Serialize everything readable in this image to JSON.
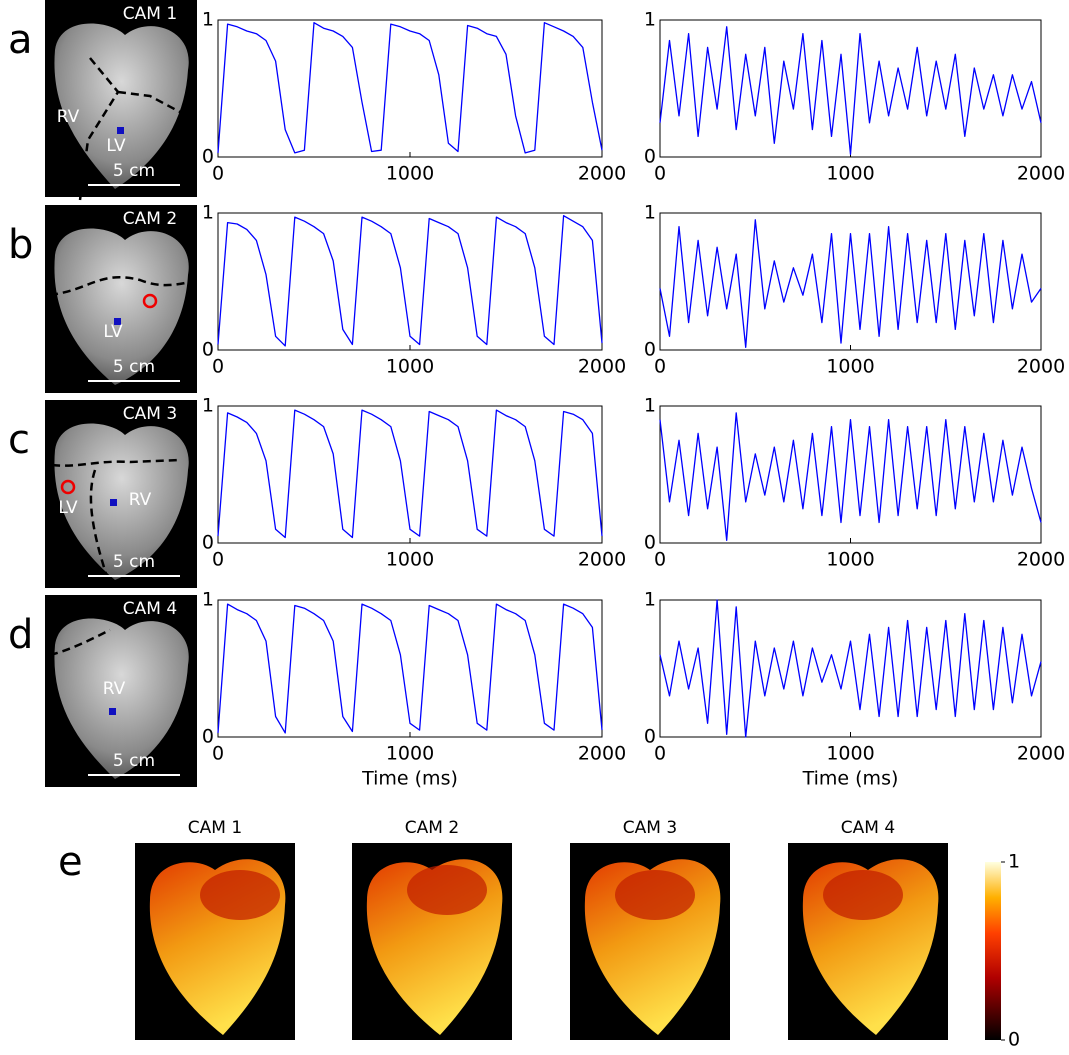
{
  "chart_data": [
    {
      "type": "line",
      "x": [
        0,
        50,
        100,
        150,
        200,
        250,
        300,
        350,
        400,
        450,
        500,
        550,
        600,
        650,
        700,
        750,
        800,
        850,
        900,
        950,
        1000,
        1050,
        1100,
        1150,
        1200,
        1250,
        1300,
        1350,
        1400,
        1450,
        1500,
        1550,
        1600,
        1650,
        1700,
        1750,
        1800,
        1850,
        1900,
        1950,
        2000
      ],
      "values": [
        0.03,
        0.97,
        0.95,
        0.92,
        0.9,
        0.85,
        0.7,
        0.2,
        0.03,
        0.05,
        0.98,
        0.94,
        0.92,
        0.88,
        0.8,
        0.4,
        0.04,
        0.05,
        0.97,
        0.95,
        0.92,
        0.9,
        0.85,
        0.6,
        0.1,
        0.04,
        0.96,
        0.94,
        0.9,
        0.88,
        0.75,
        0.3,
        0.03,
        0.05,
        0.98,
        0.95,
        0.92,
        0.88,
        0.8,
        0.4,
        0.05
      ],
      "color": "#0000ff",
      "xlim": [
        0,
        2000
      ],
      "ylim": [
        0,
        1
      ],
      "xticks": [
        0,
        1000,
        2000
      ],
      "yticks": [
        0,
        1
      ]
    },
    {
      "type": "line",
      "x": [
        0,
        50,
        100,
        150,
        200,
        250,
        300,
        350,
        400,
        450,
        500,
        550,
        600,
        650,
        700,
        750,
        800,
        850,
        900,
        950,
        1000,
        1050,
        1100,
        1150,
        1200,
        1250,
        1300,
        1350,
        1400,
        1450,
        1500,
        1550,
        1600,
        1650,
        1700,
        1750,
        1800,
        1850,
        1900,
        1950,
        2000
      ],
      "values": [
        0.25,
        0.85,
        0.3,
        0.9,
        0.15,
        0.8,
        0.35,
        0.95,
        0.2,
        0.75,
        0.3,
        0.8,
        0.1,
        0.7,
        0.35,
        0.9,
        0.2,
        0.85,
        0.15,
        0.75,
        0.02,
        0.9,
        0.25,
        0.7,
        0.3,
        0.65,
        0.35,
        0.8,
        0.3,
        0.7,
        0.35,
        0.75,
        0.15,
        0.65,
        0.35,
        0.6,
        0.3,
        0.6,
        0.35,
        0.55,
        0.25
      ],
      "color": "#0000ff",
      "xlim": [
        0,
        2000
      ],
      "ylim": [
        0,
        1
      ],
      "xticks": [
        0,
        1000,
        2000
      ],
      "yticks": [
        0,
        1
      ]
    },
    {
      "type": "line",
      "x": [
        0,
        50,
        100,
        150,
        200,
        250,
        300,
        350,
        400,
        450,
        500,
        550,
        600,
        650,
        700,
        750,
        800,
        850,
        900,
        950,
        1000,
        1050,
        1100,
        1150,
        1200,
        1250,
        1300,
        1350,
        1400,
        1450,
        1500,
        1550,
        1600,
        1650,
        1700,
        1750,
        1800,
        1850,
        1900,
        1950,
        2000
      ],
      "values": [
        0.04,
        0.93,
        0.92,
        0.88,
        0.8,
        0.55,
        0.1,
        0.03,
        0.97,
        0.94,
        0.9,
        0.85,
        0.65,
        0.15,
        0.04,
        0.97,
        0.94,
        0.9,
        0.85,
        0.6,
        0.1,
        0.04,
        0.96,
        0.93,
        0.9,
        0.85,
        0.6,
        0.1,
        0.04,
        0.97,
        0.93,
        0.9,
        0.85,
        0.6,
        0.1,
        0.04,
        0.98,
        0.94,
        0.9,
        0.8,
        0.05
      ],
      "color": "#0000ff",
      "xlim": [
        0,
        2000
      ],
      "ylim": [
        0,
        1
      ],
      "xticks": [
        0,
        1000,
        2000
      ],
      "yticks": [
        0,
        1
      ]
    },
    {
      "type": "line",
      "x": [
        0,
        50,
        100,
        150,
        200,
        250,
        300,
        350,
        400,
        450,
        500,
        550,
        600,
        650,
        700,
        750,
        800,
        850,
        900,
        950,
        1000,
        1050,
        1100,
        1150,
        1200,
        1250,
        1300,
        1350,
        1400,
        1450,
        1500,
        1550,
        1600,
        1650,
        1700,
        1750,
        1800,
        1850,
        1900,
        1950,
        2000
      ],
      "values": [
        0.45,
        0.1,
        0.9,
        0.2,
        0.8,
        0.25,
        0.75,
        0.3,
        0.7,
        0.02,
        0.95,
        0.3,
        0.65,
        0.35,
        0.6,
        0.4,
        0.7,
        0.2,
        0.85,
        0.05,
        0.85,
        0.15,
        0.85,
        0.1,
        0.9,
        0.15,
        0.85,
        0.2,
        0.8,
        0.2,
        0.85,
        0.15,
        0.8,
        0.25,
        0.85,
        0.2,
        0.8,
        0.3,
        0.7,
        0.35,
        0.45
      ],
      "color": "#0000ff",
      "xlim": [
        0,
        2000
      ],
      "ylim": [
        0,
        1
      ],
      "xticks": [
        0,
        1000,
        2000
      ],
      "yticks": [
        0,
        1
      ]
    },
    {
      "type": "line",
      "x": [
        0,
        50,
        100,
        150,
        200,
        250,
        300,
        350,
        400,
        450,
        500,
        550,
        600,
        650,
        700,
        750,
        800,
        850,
        900,
        950,
        1000,
        1050,
        1100,
        1150,
        1200,
        1250,
        1300,
        1350,
        1400,
        1450,
        1500,
        1550,
        1600,
        1650,
        1700,
        1750,
        1800,
        1850,
        1900,
        1950,
        2000
      ],
      "values": [
        0.05,
        0.95,
        0.92,
        0.88,
        0.8,
        0.6,
        0.1,
        0.04,
        0.97,
        0.94,
        0.9,
        0.85,
        0.65,
        0.1,
        0.04,
        0.97,
        0.94,
        0.9,
        0.85,
        0.6,
        0.1,
        0.05,
        0.96,
        0.93,
        0.9,
        0.85,
        0.6,
        0.1,
        0.05,
        0.97,
        0.93,
        0.9,
        0.85,
        0.6,
        0.1,
        0.05,
        0.96,
        0.94,
        0.9,
        0.8,
        0.05
      ],
      "color": "#0000ff",
      "xlim": [
        0,
        2000
      ],
      "ylim": [
        0,
        1
      ],
      "xticks": [
        0,
        1000,
        2000
      ],
      "yticks": [
        0,
        1
      ]
    },
    {
      "type": "line",
      "x": [
        0,
        50,
        100,
        150,
        200,
        250,
        300,
        350,
        400,
        450,
        500,
        550,
        600,
        650,
        700,
        750,
        800,
        850,
        900,
        950,
        1000,
        1050,
        1100,
        1150,
        1200,
        1250,
        1300,
        1350,
        1400,
        1450,
        1500,
        1550,
        1600,
        1650,
        1700,
        1750,
        1800,
        1850,
        1900,
        1950,
        2000
      ],
      "values": [
        0.9,
        0.3,
        0.75,
        0.2,
        0.8,
        0.25,
        0.7,
        0.02,
        0.95,
        0.3,
        0.65,
        0.35,
        0.7,
        0.3,
        0.75,
        0.25,
        0.8,
        0.2,
        0.85,
        0.15,
        0.9,
        0.2,
        0.85,
        0.15,
        0.9,
        0.2,
        0.85,
        0.25,
        0.85,
        0.2,
        0.9,
        0.25,
        0.85,
        0.3,
        0.8,
        0.3,
        0.75,
        0.35,
        0.7,
        0.4,
        0.15
      ],
      "color": "#0000ff",
      "xlim": [
        0,
        2000
      ],
      "ylim": [
        0,
        1
      ],
      "xticks": [
        0,
        1000,
        2000
      ],
      "yticks": [
        0,
        1
      ]
    },
    {
      "type": "line",
      "x": [
        0,
        50,
        100,
        150,
        200,
        250,
        300,
        350,
        400,
        450,
        500,
        550,
        600,
        650,
        700,
        750,
        800,
        850,
        900,
        950,
        1000,
        1050,
        1100,
        1150,
        1200,
        1250,
        1300,
        1350,
        1400,
        1450,
        1500,
        1550,
        1600,
        1650,
        1700,
        1750,
        1800,
        1850,
        1900,
        1950,
        2000
      ],
      "values": [
        0.03,
        0.97,
        0.93,
        0.9,
        0.85,
        0.7,
        0.15,
        0.03,
        0.96,
        0.94,
        0.9,
        0.85,
        0.7,
        0.15,
        0.04,
        0.97,
        0.94,
        0.9,
        0.85,
        0.6,
        0.1,
        0.05,
        0.96,
        0.93,
        0.9,
        0.85,
        0.6,
        0.1,
        0.05,
        0.97,
        0.93,
        0.9,
        0.85,
        0.6,
        0.1,
        0.05,
        0.97,
        0.94,
        0.9,
        0.8,
        0.05
      ],
      "color": "#0000ff",
      "xlim": [
        0,
        2000
      ],
      "ylim": [
        0,
        1
      ],
      "xticks": [
        0,
        1000,
        2000
      ],
      "yticks": [
        0,
        1
      ],
      "xlabel": "Time (ms)"
    },
    {
      "type": "line",
      "x": [
        0,
        50,
        100,
        150,
        200,
        250,
        300,
        350,
        400,
        450,
        500,
        550,
        600,
        650,
        700,
        750,
        800,
        850,
        900,
        950,
        1000,
        1050,
        1100,
        1150,
        1200,
        1250,
        1300,
        1350,
        1400,
        1450,
        1500,
        1550,
        1600,
        1650,
        1700,
        1750,
        1800,
        1850,
        1900,
        1950,
        2000
      ],
      "values": [
        0.6,
        0.3,
        0.7,
        0.35,
        0.65,
        0.1,
        1.0,
        0.02,
        0.95,
        0.0,
        0.7,
        0.3,
        0.65,
        0.35,
        0.7,
        0.3,
        0.65,
        0.4,
        0.6,
        0.35,
        0.7,
        0.2,
        0.75,
        0.15,
        0.8,
        0.15,
        0.85,
        0.15,
        0.8,
        0.2,
        0.85,
        0.15,
        0.9,
        0.2,
        0.85,
        0.2,
        0.8,
        0.25,
        0.75,
        0.3,
        0.55
      ],
      "color": "#0000ff",
      "xlim": [
        0,
        2000
      ],
      "ylim": [
        0,
        1
      ],
      "xticks": [
        0,
        1000,
        2000
      ],
      "yticks": [
        0,
        1
      ],
      "xlabel": "Time (ms)"
    }
  ],
  "photos": [
    {
      "letter": "a",
      "camera": "CAM 1",
      "labels": [
        "RV",
        "LV"
      ],
      "scale": "5 cm"
    },
    {
      "letter": "b",
      "camera": "CAM 2",
      "labels": [
        "LV"
      ],
      "scale": "5 cm"
    },
    {
      "letter": "c",
      "camera": "CAM 3",
      "labels": [
        "LV",
        "RV"
      ],
      "scale": "5 cm"
    },
    {
      "letter": "d",
      "camera": "CAM 4",
      "labels": [
        "RV"
      ],
      "scale": "5 cm"
    }
  ],
  "maps": {
    "letter": "e",
    "titles": [
      "CAM 1",
      "CAM 2",
      "CAM 3",
      "CAM 4"
    ],
    "colorbar": {
      "lim": [
        0,
        1
      ],
      "ticks": [
        0,
        1
      ]
    }
  }
}
